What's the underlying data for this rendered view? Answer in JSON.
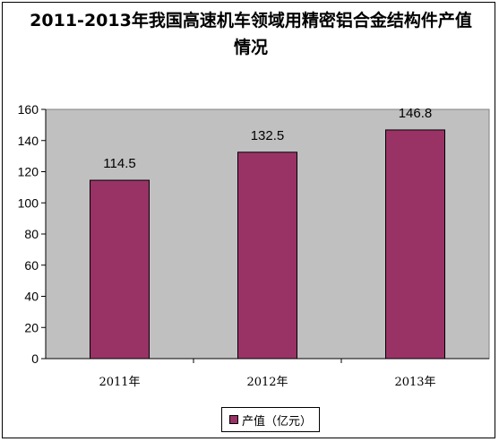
{
  "chart_data": {
    "type": "bar",
    "title": "2011-2013年我国高速机车领域用精密铝合金结构件产值情况",
    "categories": [
      "2011年",
      "2012年",
      "2013年"
    ],
    "series": [
      {
        "name": "产值（亿元）",
        "values": [
          114.5,
          132.5,
          146.8
        ]
      }
    ],
    "data_labels": [
      "114.5",
      "132.5",
      "146.8"
    ],
    "y_ticks": [
      "0",
      "20",
      "40",
      "60",
      "80",
      "100",
      "120",
      "140",
      "160"
    ],
    "ylim": [
      0,
      160
    ],
    "xlabel": "",
    "ylabel": "",
    "grid": false,
    "legend_position": "bottom",
    "colors": {
      "bar": "#993366",
      "plot_background": "#c0c0c0"
    }
  }
}
